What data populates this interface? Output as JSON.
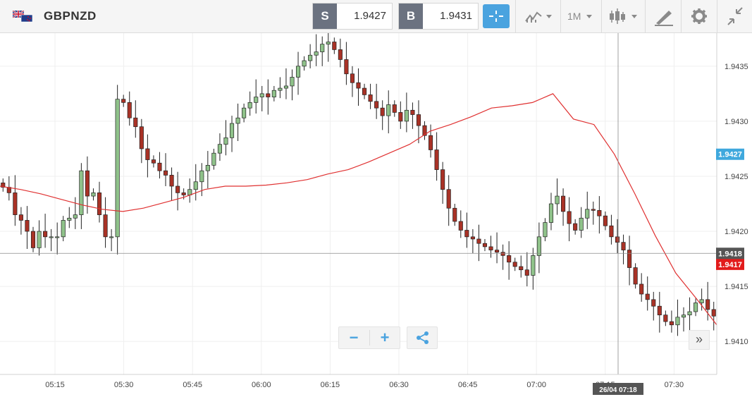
{
  "instrument": {
    "symbol": "GBPNZD",
    "flag_icon": "gb-nz-flag-icon"
  },
  "trade": {
    "sell_label": "S",
    "sell_price": "1.9427",
    "buy_label": "B",
    "buy_price": "1.9431"
  },
  "toolbar": {
    "crosshair_icon": "crosshair-icon",
    "indicators_icon": "indicators-icon",
    "timeframe": "1M",
    "chart_type_icon": "candlestick-icon",
    "draw_icon": "pencil-icon",
    "settings_icon": "gear-icon",
    "collapse_icon": "collapse-icon"
  },
  "controls": {
    "zoom_out": "−",
    "zoom_in": "+",
    "share_icon": "share-icon",
    "scroll_right": "»"
  },
  "colors": {
    "accent": "#4aa3df",
    "bull": "#8fc28a",
    "bear": "#a93226",
    "ma": "#e03131",
    "price_marker": "#3fa8dd",
    "crosshair_marker": "#555555",
    "last_marker": "#e21b1b"
  },
  "chart_data": {
    "type": "candlestick",
    "ylim": [
      1.9407,
      1.9438
    ],
    "yticks": [
      "1.9435",
      "1.9430",
      "1.9425",
      "1.9420",
      "1.9415",
      "1.9410"
    ],
    "xticks": [
      "05:15",
      "05:30",
      "05:45",
      "06:00",
      "06:15",
      "06:30",
      "06:45",
      "07:00",
      "07:15",
      "07:30"
    ],
    "current_price_label": "1.9427",
    "current_price": 1.9427,
    "crosshair_price_label": "1.9418",
    "crosshair_price": 1.9418,
    "last_price_label": "1.9417",
    "last_price": 1.9417,
    "crosshair_time_label": "26/04 07:18",
    "grid": true,
    "series": [
      {
        "name": "",
        "type": "moving_average",
        "values": [
          1.94241,
          1.94238,
          1.94234,
          1.94229,
          1.94224,
          1.9422,
          1.94218,
          1.94221,
          1.94226,
          1.94231,
          1.94238,
          1.94241,
          1.94241,
          1.94242,
          1.94244,
          1.94247,
          1.94252,
          1.94256,
          1.94263,
          1.94271,
          1.94279,
          1.94291,
          1.94297,
          1.94304,
          1.94312,
          1.94314,
          1.94317,
          1.94325,
          1.94302,
          1.94297,
          1.9427,
          1.94234,
          1.94196,
          1.94162,
          1.94139,
          1.94115
        ]
      },
      {
        "name": "",
        "type": "candles",
        "values": [
          1.9424,
          1.94235,
          1.94215,
          1.9421,
          1.942,
          1.94185,
          1.942,
          1.94195,
          1.94195,
          1.94195,
          1.9421,
          1.94212,
          1.94215,
          1.94255,
          1.94232,
          1.94235,
          1.94215,
          1.94195,
          1.94195,
          1.9432,
          1.94317,
          1.94303,
          1.94295,
          1.94275,
          1.94265,
          1.94262,
          1.94255,
          1.94251,
          1.94241,
          1.94235,
          1.94233,
          1.94238,
          1.94245,
          1.94255,
          1.9426,
          1.94271,
          1.94279,
          1.94285,
          1.94298,
          1.94303,
          1.94312,
          1.94317,
          1.94322,
          1.94325,
          1.94322,
          1.94328,
          1.9433,
          1.94332,
          1.9434,
          1.9435,
          1.94355,
          1.9436,
          1.94363,
          1.9437,
          1.94372,
          1.94365,
          1.94356,
          1.94343,
          1.94335,
          1.9433,
          1.94324,
          1.94318,
          1.94312,
          1.94305,
          1.94315,
          1.94308,
          1.943,
          1.9431,
          1.94306,
          1.94296,
          1.94287,
          1.94274,
          1.94256,
          1.94238,
          1.94221,
          1.94209,
          1.94201,
          1.94195,
          1.94193,
          1.94189,
          1.94186,
          1.94183,
          1.94181,
          1.94178,
          1.94172,
          1.94168,
          1.94165,
          1.9416,
          1.94178,
          1.94195,
          1.94208,
          1.94225,
          1.94232,
          1.94218,
          1.94207,
          1.94201,
          1.94212,
          1.9422,
          1.94219,
          1.94214,
          1.94205,
          1.94195,
          1.9419,
          1.94183,
          1.94167,
          1.94152,
          1.94143,
          1.94138,
          1.94132,
          1.94124,
          1.94118,
          1.94115,
          1.94122,
          1.94124,
          1.94127,
          1.94135,
          1.94138,
          1.94129,
          1.94123
        ]
      }
    ]
  }
}
